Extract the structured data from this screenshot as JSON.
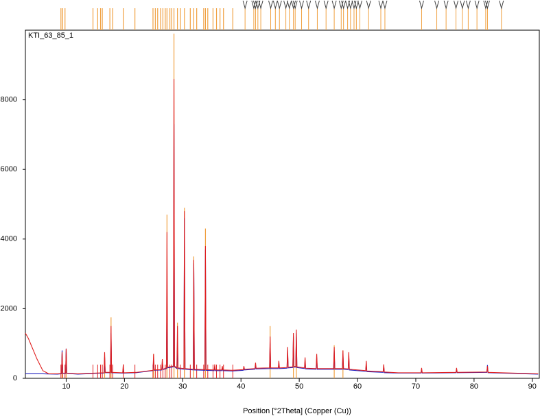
{
  "chart_data": {
    "type": "line",
    "title": "KTI_63_85_1",
    "x_label": "Position [°2Theta] (Copper (Cu))",
    "xlim": [
      3,
      91.2
    ],
    "ylim": [
      0,
      10000
    ],
    "xticks": [
      10,
      20,
      30,
      40,
      50,
      60,
      70,
      80,
      90
    ],
    "yticks": [
      0,
      2000,
      4000,
      6000,
      8000
    ],
    "x": [
      3,
      3.5,
      4,
      5,
      6,
      7,
      8.5,
      9.2,
      9.3,
      9.4,
      9.9,
      10.0,
      10.1,
      12,
      16.5,
      16.6,
      16.7,
      17.6,
      17.7,
      17.8,
      19.7,
      19.8,
      19.9,
      22,
      24.9,
      25.0,
      25.1,
      26.4,
      26.5,
      26.6,
      27.2,
      27.3,
      27.4,
      28.4,
      28.5,
      28.6,
      29.0,
      29.1,
      29.2,
      30.2,
      30.3,
      30.4,
      31.8,
      31.9,
      32.0,
      33.8,
      33.9,
      34.0,
      35.4,
      35.5,
      35.6,
      36.7,
      36.8,
      36.9,
      38.5,
      40.4,
      40.5,
      40.6,
      42.4,
      42.5,
      42.6,
      44.9,
      45.0,
      45.1,
      46.4,
      46.5,
      46.6,
      47.9,
      48.0,
      48.1,
      48.9,
      49.0,
      49.1,
      49.4,
      49.5,
      49.6,
      50.9,
      51.0,
      51.1,
      52.9,
      53.0,
      53.1,
      55.9,
      56.0,
      56.1,
      57.4,
      57.5,
      57.6,
      58.4,
      58.5,
      58.6,
      61.4,
      61.5,
      61.6,
      64.4,
      64.5,
      64.6,
      67,
      70.9,
      71.0,
      71.1,
      76.9,
      77.0,
      77.1,
      82.2,
      82.3,
      82.4,
      91
    ],
    "series": [
      {
        "color": "#2020c0",
        "values": [
          130,
          130,
          130,
          130,
          130,
          125,
          120,
          130,
          800,
          140,
          140,
          850,
          140,
          120,
          150,
          600,
          160,
          160,
          1300,
          160,
          150,
          300,
          150,
          160,
          220,
          550,
          230,
          240,
          450,
          250,
          280,
          2400,
          300,
          330,
          7300,
          330,
          280,
          1000,
          280,
          260,
          4600,
          260,
          240,
          3300,
          240,
          230,
          3700,
          230,
          220,
          300,
          220,
          220,
          300,
          220,
          210,
          230,
          300,
          240,
          260,
          350,
          270,
          280,
          1000,
          280,
          280,
          400,
          280,
          290,
          800,
          300,
          310,
          1200,
          320,
          320,
          1300,
          310,
          280,
          500,
          270,
          260,
          600,
          260,
          260,
          800,
          260,
          260,
          700,
          260,
          250,
          650,
          240,
          200,
          400,
          190,
          170,
          350,
          160,
          150,
          150,
          250,
          150,
          160,
          250,
          160,
          170,
          380,
          160,
          120
        ]
      },
      {
        "color": "#e02020",
        "values": [
          1300,
          1150,
          950,
          550,
          220,
          130,
          130,
          140,
          750,
          150,
          150,
          850,
          150,
          130,
          160,
          750,
          170,
          170,
          1500,
          170,
          160,
          400,
          160,
          170,
          230,
          700,
          240,
          250,
          550,
          260,
          300,
          4200,
          320,
          350,
          8600,
          350,
          300,
          1500,
          300,
          280,
          4800,
          280,
          260,
          3400,
          260,
          250,
          3800,
          250,
          240,
          400,
          240,
          240,
          350,
          240,
          230,
          250,
          350,
          260,
          280,
          450,
          290,
          300,
          1200,
          300,
          300,
          500,
          300,
          310,
          900,
          320,
          330,
          1300,
          340,
          340,
          1400,
          330,
          300,
          600,
          290,
          280,
          700,
          280,
          280,
          900,
          280,
          280,
          800,
          280,
          270,
          750,
          260,
          220,
          500,
          210,
          190,
          400,
          180,
          160,
          160,
          300,
          160,
          170,
          300,
          170,
          180,
          350,
          170,
          130
        ]
      }
    ],
    "reference_peaks": {
      "color": "#f0a040",
      "x": [
        9.3,
        10.0,
        16.6,
        17.7,
        25.0,
        27.3,
        28.5,
        29.1,
        30.3,
        31.9,
        33.9,
        45.0,
        49.0,
        49.5,
        56.0,
        57.5
      ],
      "values": [
        700,
        600,
        600,
        1750,
        700,
        4700,
        9900,
        1600,
        4900,
        3500,
        4300,
        1500,
        1100,
        1200,
        950,
        800
      ]
    },
    "markers": [
      {
        "style": "line",
        "color": "#f0a040",
        "x": [
          9.1,
          9.4,
          9.8,
          14.6,
          15.4,
          15.9,
          16.2,
          17.5,
          18.0,
          19.8,
          21.8,
          24.9,
          25.3,
          25.7,
          26.2,
          26.6,
          27.0,
          27.3,
          27.8,
          28.1,
          28.5,
          29.1,
          29.6,
          30.3,
          31.3,
          31.9,
          32.4,
          33.6,
          33.9,
          34.3,
          35.2,
          35.8,
          36.4,
          37.0,
          38.6
        ]
      },
      {
        "style": "v",
        "color": "#404040",
        "line_color": "#f0a040",
        "x": [
          40.7,
          42.2,
          42.5,
          42.9,
          43.4,
          45.1,
          45.9,
          46.6,
          47.7,
          48.3,
          49.0,
          49.3,
          50.4,
          51.6,
          53.1,
          54.6,
          56.0,
          57.2,
          57.6,
          58.3,
          58.8,
          59.4,
          59.8,
          60.4,
          61.9,
          64.0,
          64.7,
          71.0,
          73.6,
          75.2,
          76.9,
          78.0,
          79.0,
          80.5,
          82.0,
          82.3,
          84.7
        ]
      }
    ]
  }
}
